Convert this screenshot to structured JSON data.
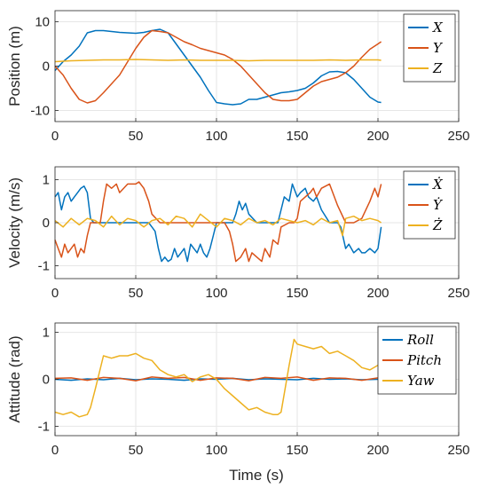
{
  "xlabel": "Time (s)",
  "colors": {
    "blue": "#0072BD",
    "orange": "#D95319",
    "yellow": "#EDB120",
    "grid": "#e6e6e6",
    "axis": "#262626"
  },
  "chart_data": [
    {
      "type": "line",
      "ylabel": "Position (m)",
      "xlim": [
        0,
        250
      ],
      "ylim": [
        -12.5,
        12.5
      ],
      "xticks": [
        0,
        50,
        100,
        150,
        200,
        250
      ],
      "yticks": [
        -10,
        0,
        10
      ],
      "grid": true,
      "legend_position": "top-right",
      "series": [
        {
          "name": "X",
          "color": "#0072BD",
          "x": [
            0,
            5,
            10,
            15,
            20,
            25,
            30,
            35,
            40,
            45,
            50,
            55,
            60,
            65,
            70,
            75,
            80,
            85,
            90,
            95,
            100,
            105,
            110,
            115,
            120,
            125,
            130,
            135,
            140,
            145,
            150,
            155,
            160,
            165,
            170,
            175,
            180,
            185,
            190,
            195,
            200,
            202
          ],
          "y": [
            -1,
            1,
            2.5,
            4.5,
            7.5,
            8,
            8,
            7.8,
            7.6,
            7.5,
            7.4,
            7.6,
            8,
            8.3,
            7.5,
            5,
            2.5,
            0,
            -2.5,
            -5.5,
            -8.2,
            -8.5,
            -8.7,
            -8.5,
            -7.5,
            -7.5,
            -7,
            -6.5,
            -6,
            -5.8,
            -5.5,
            -5,
            -3.8,
            -2.2,
            -1.3,
            -1.2,
            -1.5,
            -3,
            -5,
            -7,
            -8.1,
            -8.2
          ]
        },
        {
          "name": "Y",
          "color": "#D95319",
          "x": [
            0,
            5,
            10,
            15,
            20,
            25,
            30,
            35,
            40,
            45,
            50,
            55,
            60,
            65,
            70,
            75,
            80,
            85,
            90,
            95,
            100,
            105,
            110,
            115,
            120,
            125,
            130,
            135,
            140,
            145,
            150,
            155,
            160,
            165,
            170,
            175,
            180,
            185,
            190,
            195,
            200,
            202
          ],
          "y": [
            0,
            -2,
            -5,
            -7.5,
            -8.3,
            -7.8,
            -6,
            -4,
            -2,
            1,
            4,
            6.5,
            8,
            7.8,
            7.5,
            6.5,
            5.5,
            4.8,
            4,
            3.5,
            3,
            2.5,
            1.5,
            0,
            -2,
            -4,
            -6,
            -7.5,
            -7.8,
            -7.8,
            -7.5,
            -6,
            -4.5,
            -3.5,
            -3,
            -2.5,
            -1.5,
            0,
            2,
            3.8,
            5,
            5.5
          ]
        },
        {
          "name": "Z",
          "color": "#EDB120",
          "x": [
            0,
            10,
            20,
            30,
            40,
            50,
            60,
            70,
            80,
            90,
            100,
            110,
            120,
            130,
            140,
            150,
            160,
            170,
            180,
            190,
            200,
            202
          ],
          "y": [
            1,
            1.2,
            1.3,
            1.4,
            1.4,
            1.5,
            1.4,
            1.3,
            1.4,
            1.3,
            1.3,
            1.3,
            1.2,
            1.3,
            1.3,
            1.3,
            1.3,
            1.4,
            1.3,
            1.4,
            1.4,
            1.3
          ]
        }
      ]
    },
    {
      "type": "line",
      "ylabel": "Velocity (m/s)",
      "xlim": [
        0,
        250
      ],
      "ylim": [
        -1.3,
        1.3
      ],
      "xticks": [
        0,
        50,
        100,
        150,
        200,
        250
      ],
      "yticks": [
        -1,
        0,
        1
      ],
      "grid": true,
      "legend_position": "top-right",
      "series": [
        {
          "name": "Ẋ",
          "color": "#0072BD",
          "x": [
            0,
            2,
            4,
            6,
            8,
            10,
            12,
            14,
            16,
            18,
            20,
            22,
            24,
            26,
            28,
            30,
            35,
            40,
            45,
            50,
            55,
            58,
            60,
            62,
            64,
            66,
            68,
            70,
            72,
            74,
            76,
            78,
            80,
            82,
            84,
            86,
            88,
            90,
            92,
            94,
            96,
            98,
            100,
            102,
            105,
            110,
            112,
            114,
            116,
            118,
            120,
            125,
            130,
            135,
            138,
            140,
            142,
            145,
            147,
            150,
            152,
            155,
            157,
            160,
            162,
            165,
            170,
            175,
            177,
            180,
            182,
            185,
            188,
            190,
            192,
            195,
            198,
            200,
            202
          ],
          "y": [
            0.6,
            0.7,
            0.3,
            0.6,
            0.7,
            0.5,
            0.6,
            0.7,
            0.8,
            0.85,
            0.7,
            0.1,
            0,
            0,
            0,
            0,
            0,
            0,
            0,
            0,
            0,
            0,
            -0.1,
            -0.2,
            -0.6,
            -0.9,
            -0.8,
            -0.9,
            -0.85,
            -0.6,
            -0.8,
            -0.7,
            -0.6,
            -0.9,
            -0.5,
            -0.6,
            -0.7,
            -0.5,
            -0.7,
            -0.8,
            -0.6,
            -0.3,
            0,
            0,
            0,
            0,
            0.2,
            0.5,
            0.3,
            0.45,
            0.2,
            0,
            0,
            0,
            0,
            0.3,
            0.6,
            0.5,
            0.9,
            0.6,
            0.7,
            0.8,
            0.6,
            0.5,
            0.6,
            0.3,
            0,
            0,
            -0.1,
            -0.6,
            -0.5,
            -0.7,
            -0.6,
            -0.7,
            -0.7,
            -0.6,
            -0.7,
            -0.6,
            -0.1
          ]
        },
        {
          "name": "Ẏ",
          "color": "#D95319",
          "x": [
            0,
            2,
            4,
            6,
            8,
            10,
            12,
            14,
            16,
            18,
            20,
            22,
            24,
            26,
            28,
            30,
            32,
            35,
            38,
            40,
            45,
            50,
            52,
            55,
            58,
            60,
            65,
            70,
            75,
            80,
            85,
            90,
            95,
            100,
            105,
            108,
            110,
            112,
            115,
            118,
            120,
            122,
            125,
            128,
            130,
            133,
            135,
            138,
            140,
            145,
            148,
            150,
            152,
            155,
            158,
            160,
            162,
            165,
            170,
            175,
            180,
            185,
            190,
            195,
            198,
            200,
            202
          ],
          "y": [
            -0.4,
            -0.6,
            -0.8,
            -0.5,
            -0.7,
            -0.6,
            -0.5,
            -0.8,
            -0.6,
            -0.7,
            -0.3,
            0,
            0,
            0,
            0,
            0.5,
            0.9,
            0.8,
            0.9,
            0.7,
            0.9,
            0.9,
            0.95,
            0.8,
            0.5,
            0.2,
            0,
            0,
            0,
            0,
            0,
            0,
            0,
            0,
            0,
            -0.2,
            -0.5,
            -0.9,
            -0.8,
            -0.6,
            -0.9,
            -0.7,
            -0.8,
            -0.9,
            -0.6,
            -0.8,
            -0.4,
            -0.5,
            -0.1,
            0,
            0,
            0.1,
            0.5,
            0.6,
            0.7,
            0.8,
            0.6,
            0.8,
            0.9,
            0.4,
            0,
            0,
            0.1,
            0.5,
            0.8,
            0.6,
            0.9
          ]
        },
        {
          "name": "Ż",
          "color": "#EDB120",
          "x": [
            0,
            5,
            10,
            15,
            20,
            25,
            30,
            35,
            40,
            45,
            50,
            55,
            60,
            65,
            70,
            75,
            80,
            85,
            90,
            95,
            100,
            105,
            110,
            115,
            120,
            125,
            130,
            135,
            140,
            145,
            150,
            155,
            160,
            165,
            170,
            175,
            178,
            180,
            185,
            190,
            195,
            200,
            202
          ],
          "y": [
            0.05,
            -0.1,
            0.1,
            -0.05,
            0.1,
            0.05,
            -0.1,
            0.15,
            -0.05,
            0.1,
            0.05,
            -0.1,
            0.05,
            0.1,
            -0.05,
            0.15,
            0.1,
            -0.1,
            0.2,
            0.05,
            -0.1,
            0.1,
            0.05,
            -0.05,
            0.1,
            0,
            0.05,
            -0.05,
            0.1,
            0.05,
            0,
            0.05,
            -0.05,
            0.1,
            0,
            0.05,
            -0.3,
            0.1,
            0.15,
            0.05,
            0.1,
            0.05,
            0
          ]
        }
      ]
    },
    {
      "type": "line",
      "ylabel": "Attitude (rad)",
      "xlim": [
        0,
        250
      ],
      "ylim": [
        -1.2,
        1.2
      ],
      "xticks": [
        0,
        50,
        100,
        150,
        200,
        250
      ],
      "yticks": [
        -1,
        0,
        1
      ],
      "grid": true,
      "legend_position": "top-right",
      "series": [
        {
          "name": "Roll",
          "color": "#0072BD",
          "x": [
            0,
            10,
            20,
            30,
            40,
            50,
            60,
            70,
            80,
            90,
            100,
            110,
            120,
            130,
            140,
            150,
            160,
            170,
            180,
            190,
            200,
            202
          ],
          "y": [
            0,
            -0.02,
            0.01,
            -0.01,
            0.02,
            -0.01,
            0.01,
            0,
            -0.02,
            0.01,
            0,
            0.02,
            -0.01,
            0.01,
            0,
            -0.01,
            0.02,
            0,
            0.01,
            -0.01,
            0,
            0
          ]
        },
        {
          "name": "Pitch",
          "color": "#D95319",
          "x": [
            0,
            10,
            20,
            30,
            40,
            50,
            60,
            70,
            80,
            90,
            100,
            110,
            120,
            130,
            140,
            150,
            160,
            170,
            180,
            190,
            200,
            202
          ],
          "y": [
            0.02,
            0.03,
            -0.02,
            0.04,
            0.02,
            -0.03,
            0.05,
            0.02,
            0.04,
            -0.02,
            0.03,
            0.02,
            -0.03,
            0.04,
            0.02,
            0.05,
            -0.02,
            0.03,
            0.02,
            -0.02,
            0.03,
            0.02
          ]
        },
        {
          "name": "Yaw",
          "color": "#EDB120",
          "x": [
            0,
            5,
            10,
            15,
            20,
            22,
            25,
            30,
            35,
            40,
            45,
            50,
            55,
            60,
            65,
            70,
            75,
            80,
            85,
            90,
            95,
            100,
            105,
            110,
            115,
            120,
            125,
            130,
            135,
            138,
            140,
            145,
            148,
            150,
            155,
            160,
            165,
            170,
            175,
            180,
            185,
            190,
            195,
            200,
            202
          ],
          "y": [
            -0.7,
            -0.75,
            -0.7,
            -0.8,
            -0.75,
            -0.6,
            -0.2,
            0.5,
            0.45,
            0.5,
            0.5,
            0.55,
            0.45,
            0.4,
            0.2,
            0.1,
            0.05,
            0.1,
            -0.05,
            0.05,
            0.1,
            0,
            -0.2,
            -0.35,
            -0.5,
            -0.65,
            -0.6,
            -0.7,
            -0.75,
            -0.75,
            -0.7,
            0.3,
            0.85,
            0.75,
            0.7,
            0.65,
            0.7,
            0.55,
            0.6,
            0.5,
            0.4,
            0.25,
            0.2,
            0.3,
            0.4
          ]
        }
      ]
    }
  ]
}
